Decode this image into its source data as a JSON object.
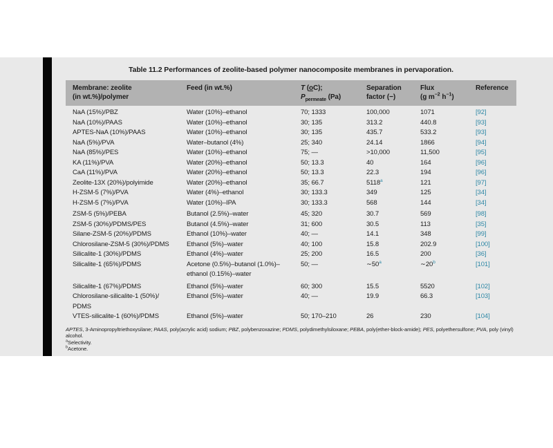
{
  "colors": {
    "reference_accent": "#2d87a5",
    "header_bg": "#b2b2b2",
    "band_bg": "#e9e9e9",
    "spine": "#060606"
  },
  "caption": "Table 11.2  Performances of zeolite-based polymer nanocomposite membranes in pervaporation.",
  "table": {
    "headers": {
      "membrane_line1": "Membrane: zeolite",
      "membrane_line2": "(in wt.%)/polymer",
      "feed": "Feed (in wt.%)",
      "temp": {
        "symbol": "T",
        "open": " (",
        "deg": "o",
        "close": "C);",
        "p": "P",
        "p_sub": "permeate",
        "p_unit": " (Pa)"
      },
      "separation_line1": "Separation",
      "separation_line2": "factor (−)",
      "flux_line1": "Flux",
      "flux_unit": {
        "open": "(g m",
        "sup1": "−2",
        "mid": " h",
        "sup2": "−1",
        "close": ")"
      },
      "reference": "Reference"
    },
    "rows": [
      {
        "membrane": [
          "NaA (15%)/PBZ"
        ],
        "feed": [
          "Water (10%)–ethanol"
        ],
        "tp": "70; 1333",
        "sep": "100,000",
        "sep_sup": "",
        "flux": "1071",
        "flux_sup": "",
        "ref": "[92]",
        "gap": 0
      },
      {
        "membrane": [
          "NaA (10%)/PAAS"
        ],
        "feed": [
          "Water (10%)–ethanol"
        ],
        "tp": "30; 135",
        "sep": "313.2",
        "sep_sup": "",
        "flux": "440.8",
        "flux_sup": "",
        "ref": "[93]",
        "gap": 0
      },
      {
        "membrane": [
          "APTES-NaA (10%)/PAAS"
        ],
        "feed": [
          "Water (10%)–ethanol"
        ],
        "tp": "30; 135",
        "sep": "435.7",
        "sep_sup": "",
        "flux": "533.2",
        "flux_sup": "",
        "ref": "[93]",
        "gap": 0
      },
      {
        "membrane": [
          "NaA (5%)/PVA"
        ],
        "feed": [
          "Water–butanol (4%)"
        ],
        "tp": "25; 340",
        "sep": "24.14",
        "sep_sup": "",
        "flux": "1866",
        "flux_sup": "",
        "ref": "[94]",
        "gap": 0
      },
      {
        "membrane": [
          "NaA (85%)/PES"
        ],
        "feed": [
          "Water (10%)–ethanol"
        ],
        "tp": "75; —",
        "sep": ">10,000",
        "sep_sup": "",
        "flux": "11,500",
        "flux_sup": "",
        "ref": "[95]",
        "gap": 0
      },
      {
        "membrane": [
          "KA (11%)/PVA"
        ],
        "feed": [
          "Water (20%)–ethanol"
        ],
        "tp": "50; 13.3",
        "sep": "40",
        "sep_sup": "",
        "flux": "164",
        "flux_sup": "",
        "ref": "[96]",
        "gap": 0
      },
      {
        "membrane": [
          "CaA (11%)/PVA"
        ],
        "feed": [
          "Water (20%)–ethanol"
        ],
        "tp": "50; 13.3",
        "sep": "22.3",
        "sep_sup": "",
        "flux": "194",
        "flux_sup": "",
        "ref": "[96]",
        "gap": 0
      },
      {
        "membrane": [
          "Zeolite-13X (20%)/polyimide"
        ],
        "feed": [
          "Water (20%)–ethanol"
        ],
        "tp": "35; 66.7",
        "sep": "5118",
        "sep_sup": "a",
        "flux": "121",
        "flux_sup": "",
        "ref": "[97]",
        "gap": 0
      },
      {
        "membrane": [
          "H-ZSM-5 (7%)/PVA"
        ],
        "feed": [
          "Water (4%)–ethanol"
        ],
        "tp": "30; 133.3",
        "sep": "349",
        "sep_sup": "",
        "flux": "125",
        "flux_sup": "",
        "ref": "[34]",
        "gap": 0
      },
      {
        "membrane": [
          "H-ZSM-5 (7%)/PVA"
        ],
        "feed": [
          "Water (10%)–IPA"
        ],
        "tp": "30; 133.3",
        "sep": "568",
        "sep_sup": "",
        "flux": "144",
        "flux_sup": "",
        "ref": "[34]",
        "gap": 0
      },
      {
        "membrane": [
          "ZSM-5 (5%)/PEBA"
        ],
        "feed": [
          "Butanol (2.5%)–water"
        ],
        "tp": "45; 320",
        "sep": "30.7",
        "sep_sup": "",
        "flux": "569",
        "flux_sup": "",
        "ref": "[98]",
        "gap": 2
      },
      {
        "membrane": [
          "ZSM-5 (30%)/PDMS/PES"
        ],
        "feed": [
          "Butanol (4.5%)–water"
        ],
        "tp": "31; 600",
        "sep": "30.5",
        "sep_sup": "",
        "flux": "113",
        "flux_sup": "",
        "ref": "[35]",
        "gap": 0
      },
      {
        "membrane": [
          "Silane-ZSM-5 (20%)/PDMS"
        ],
        "feed": [
          "Ethanol (10%)–water"
        ],
        "tp": "40; —",
        "sep": "14.1",
        "sep_sup": "",
        "flux": "348",
        "flux_sup": "",
        "ref": "[99]",
        "gap": 0
      },
      {
        "membrane": [
          "Chlorosilane-ZSM-5 (30%)/PDMS"
        ],
        "feed": [
          "Ethanol (5%)–water"
        ],
        "tp": "40; 100",
        "sep": "15.8",
        "sep_sup": "",
        "flux": "202.9",
        "flux_sup": "",
        "ref": "[100]",
        "gap": 0
      },
      {
        "membrane": [
          "Silicalite-1 (30%)/PDMS"
        ],
        "feed": [
          "Ethanol (4%)–water"
        ],
        "tp": "25; 200",
        "sep": "16.5",
        "sep_sup": "",
        "flux": "200",
        "flux_sup": "",
        "ref": "[36]",
        "gap": 0
      },
      {
        "membrane": [
          "Silicalite-1 (65%)/PDMS"
        ],
        "feed": [
          "Acetone (0.5%)–butanol (1.0%)–",
          "ethanol (0.15%)–water"
        ],
        "tp": "50; —",
        "sep": "∼50",
        "sep_sup": "a",
        "flux": "∼20",
        "flux_sup": "b",
        "ref": "[101]",
        "gap": 0
      },
      {
        "membrane": [
          "Silicalite-1 (67%)/PDMS"
        ],
        "feed": [
          "Ethanol (5%)–water"
        ],
        "tp": "60; 300",
        "sep": "15.5",
        "sep_sup": "",
        "flux": "5520",
        "flux_sup": "",
        "ref": "[102]",
        "gap": 3
      },
      {
        "membrane": [
          "Chlorosilane-silicalite-1 (50%)/",
          "PDMS"
        ],
        "feed": [
          "Ethanol (5%)–water"
        ],
        "tp": "40; —",
        "sep": "19.9",
        "sep_sup": "",
        "flux": "66.3",
        "flux_sup": "",
        "ref": "[103]",
        "gap": 0
      },
      {
        "membrane": [
          "VTES-silicalite-1 (60%)/PDMS"
        ],
        "feed": [
          "Ethanol (5%)–water"
        ],
        "tp": "50; 170–210",
        "sep": "26",
        "sep_sup": "",
        "flux": "230",
        "flux_sup": "",
        "ref": "[104]",
        "gap": 0
      }
    ],
    "footnotes": {
      "abbreviations": [
        [
          "APTES",
          "3-Aminopropyltriethoxysilane"
        ],
        [
          "PAAS",
          "poly(acrylic acid) sodium"
        ],
        [
          "PBZ",
          "polybenzoxazine"
        ],
        [
          "PDMS",
          "polydimethylsiloxane"
        ],
        [
          "PEBA",
          "poly(ether-block-amide)"
        ],
        [
          "PES",
          "polyethersulfone"
        ],
        [
          "PVA",
          "poly (vinyl) alcohol"
        ]
      ],
      "separator": "; ",
      "pair_separator": ", ",
      "terminator": ".",
      "note_a": {
        "sup": "a",
        "text": "Selectivity."
      },
      "note_b": {
        "sup": "b",
        "text": "Acetone."
      }
    }
  }
}
